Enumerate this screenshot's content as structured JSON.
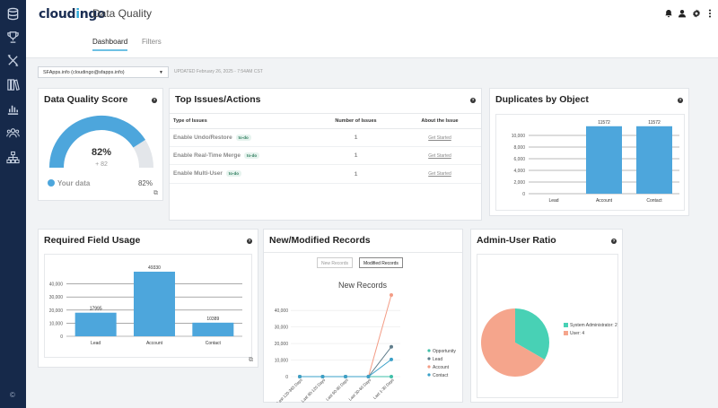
{
  "app": {
    "logo_text": "cloudingo",
    "title": "Data Quality",
    "copyright": "©"
  },
  "sidebar": {
    "icons": [
      "database-icon",
      "trophy-icon",
      "tools-icon",
      "library-icon",
      "bar-chart-icon",
      "users-icon",
      "sitemap-icon"
    ]
  },
  "topbar": {
    "icons": [
      "bell-icon",
      "user-icon",
      "gear-icon",
      "more-vertical-icon"
    ]
  },
  "tabs": [
    {
      "label": "Dashboard",
      "active": true
    },
    {
      "label": "Filters",
      "active": false
    }
  ],
  "org_select": {
    "value": "SFApps.info (cloudingo@sfapps.info)",
    "updated": "UPDATED February 26, 2025 - 7:54AM CST"
  },
  "dq_score": {
    "title": "Data Quality Score",
    "value": "82%",
    "delta": "+ 82",
    "score_fraction": 0.82,
    "legend_label": "Your data",
    "legend_value": "82%",
    "color": "#4da6dc"
  },
  "top_issues": {
    "title": "Top Issues/Actions",
    "columns": [
      "Type of Issues",
      "Number of Issues",
      "About the Issue"
    ],
    "rows": [
      {
        "name": "Enable Undo/Restore",
        "badge": "to-do",
        "count": "1",
        "action": "Get Started"
      },
      {
        "name": "Enable Real-Time Merge",
        "badge": "to-do",
        "count": "1",
        "action": "Get Started"
      },
      {
        "name": "Enable Multi-User",
        "badge": "to-do",
        "count": "1",
        "action": "Get Started"
      }
    ]
  },
  "duplicates": {
    "title": "Duplicates by Object",
    "chart_data": {
      "type": "bar",
      "categories": [
        "Lead",
        "Account",
        "Contact"
      ],
      "values": [
        0,
        11572,
        11572
      ],
      "value_labels": [
        "",
        "11572",
        "11572"
      ],
      "yticks": [
        "0",
        "2,000",
        "4,000",
        "6,000",
        "8,000",
        "10,000"
      ],
      "ylim": [
        0,
        12000
      ],
      "color": "#4da6dc"
    }
  },
  "required_fields": {
    "title": "Required Field Usage",
    "chart_data": {
      "type": "bar",
      "categories": [
        "Lead",
        "Account",
        "Contact"
      ],
      "values": [
        17995,
        49330,
        10389
      ],
      "value_labels": [
        "17995",
        "49330",
        "10389"
      ],
      "yticks": [
        "0",
        "10,000",
        "20,000",
        "30,000",
        "40,000"
      ],
      "ylim": [
        0,
        50000
      ],
      "color": "#4da6dc"
    }
  },
  "new_modified": {
    "title": "New/Modified Records",
    "toggle_new": "New Records",
    "toggle_modified": "Modified Records",
    "chart_data": {
      "type": "line",
      "title": "New Records",
      "categories": [
        "Last 120-365 Days",
        "Last 90-120 Days",
        "Last 60-90 Days",
        "Last 30-60 Days",
        "Last 1-30 Days"
      ],
      "yticks": [
        "0",
        "10,000",
        "20,000",
        "30,000",
        "40,000"
      ],
      "ylim": [
        0,
        45000
      ],
      "series": [
        {
          "name": "Opportunity",
          "color": "#3fbfa8",
          "values": [
            0,
            0,
            0,
            0,
            0
          ]
        },
        {
          "name": "Lead",
          "color": "#607d8b",
          "values": [
            0,
            0,
            0,
            0,
            18000
          ]
        },
        {
          "name": "Account",
          "color": "#f39c85",
          "values": [
            0,
            0,
            0,
            0,
            49330
          ]
        },
        {
          "name": "Contact",
          "color": "#3aa0c8",
          "values": [
            0,
            0,
            0,
            0,
            10389
          ]
        }
      ]
    }
  },
  "admin_ratio": {
    "title": "Admin-User Ratio",
    "chart_data": {
      "type": "pie",
      "labels": [
        "System Administrator: 2",
        "User: 4"
      ],
      "values": [
        2,
        4
      ],
      "colors": [
        "#48d1b5",
        "#f5a58c"
      ]
    }
  }
}
